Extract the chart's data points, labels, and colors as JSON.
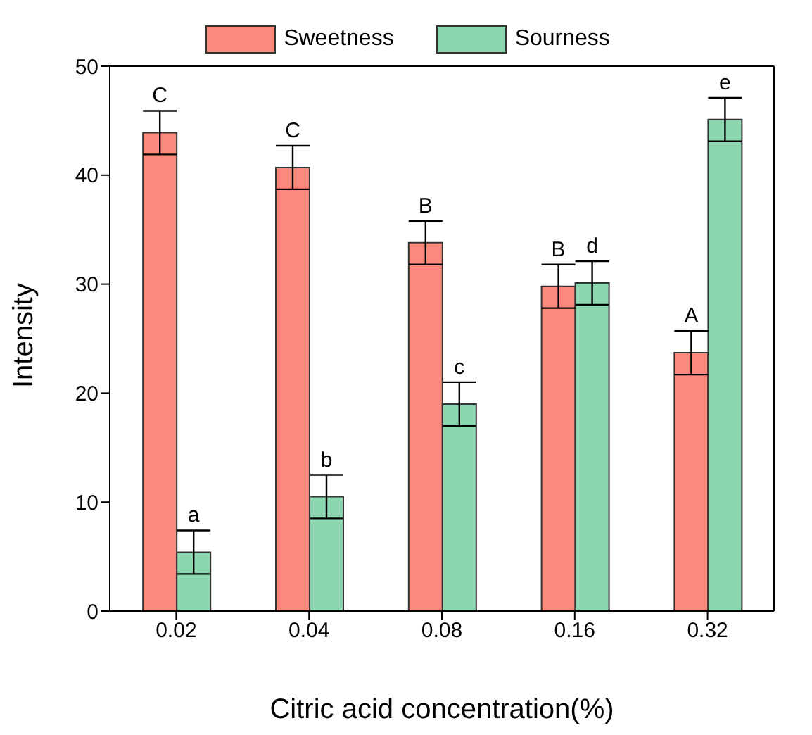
{
  "chart_data": {
    "type": "bar",
    "xlabel": "Citric acid concentration(%)",
    "ylabel": "Intensity",
    "categories": [
      "0.02",
      "0.04",
      "0.08",
      "0.16",
      "0.32"
    ],
    "ylim": [
      0,
      50
    ],
    "yticks": [
      0,
      10,
      20,
      30,
      40,
      50
    ],
    "legend": "top",
    "series": [
      {
        "name": "Sweetness",
        "color": "#fa8a7b",
        "values": [
          43.9,
          40.7,
          33.8,
          29.8,
          23.7
        ],
        "errors": [
          2,
          2,
          2,
          2,
          2
        ],
        "value_labels": [
          "C",
          "C",
          "B",
          "B",
          "A"
        ]
      },
      {
        "name": "Sourness",
        "color": "#8cd7b0",
        "values": [
          5.4,
          10.5,
          19.0,
          30.1,
          45.1
        ],
        "errors": [
          2,
          2,
          2,
          2,
          2
        ],
        "value_labels": [
          "a",
          "b",
          "c",
          "d",
          "e"
        ]
      }
    ]
  }
}
